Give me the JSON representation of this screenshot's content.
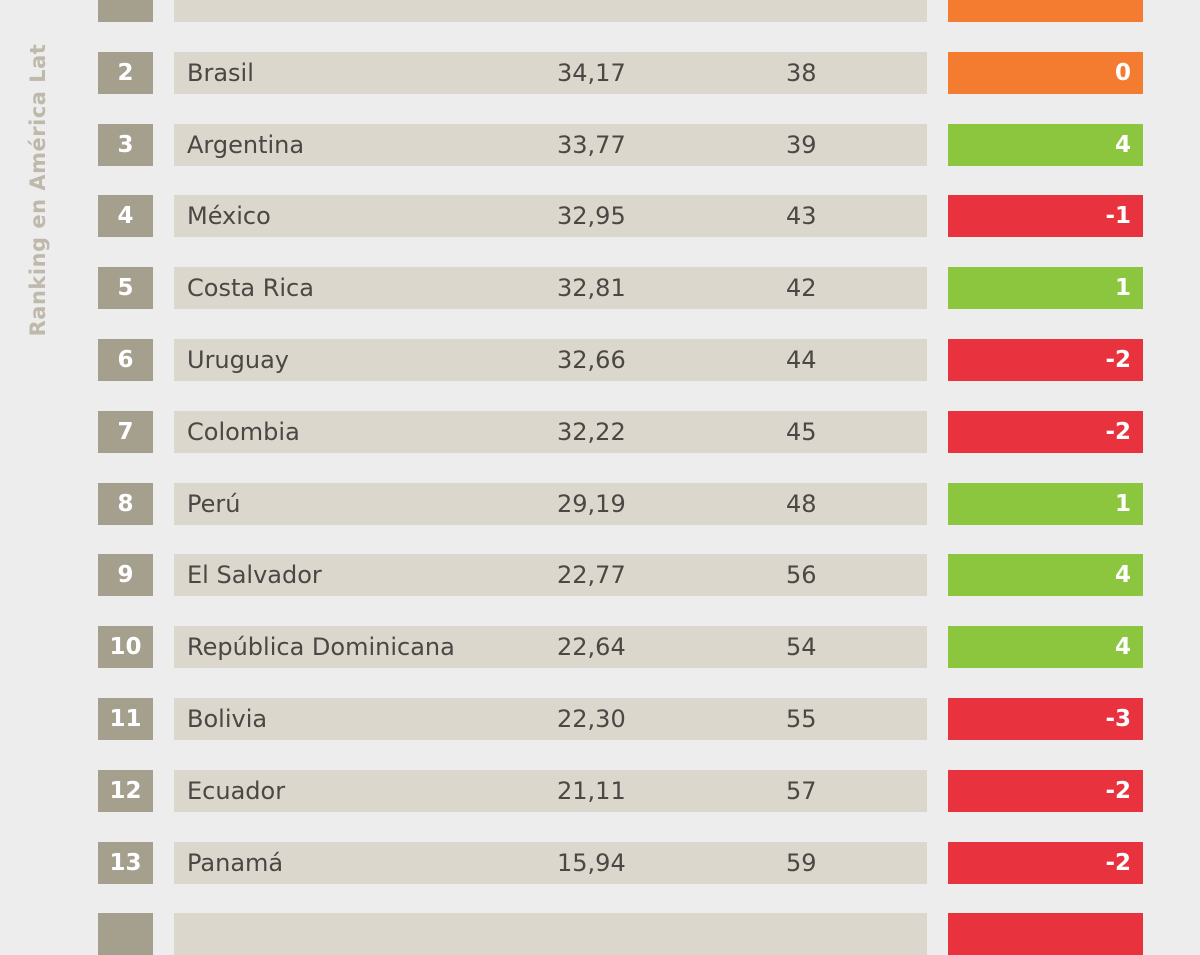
{
  "side_label": "Ranking en América Lat",
  "colors": {
    "positive": "#8cc63f",
    "zero": "#f47c30",
    "negative": "#e8323e"
  },
  "rows": [
    {
      "rank": "",
      "country": "",
      "score": "",
      "world_rank": "",
      "change": "",
      "status": "zero"
    },
    {
      "rank": "2",
      "country": "Brasil",
      "score": "34,17",
      "world_rank": "38",
      "change": "0",
      "status": "zero"
    },
    {
      "rank": "3",
      "country": "Argentina",
      "score": "33,77",
      "world_rank": "39",
      "change": "4",
      "status": "positive"
    },
    {
      "rank": "4",
      "country": "México",
      "score": "32,95",
      "world_rank": "43",
      "change": "-1",
      "status": "negative"
    },
    {
      "rank": "5",
      "country": "Costa Rica",
      "score": "32,81",
      "world_rank": "42",
      "change": "1",
      "status": "positive"
    },
    {
      "rank": "6",
      "country": "Uruguay",
      "score": "32,66",
      "world_rank": "44",
      "change": "-2",
      "status": "negative"
    },
    {
      "rank": "7",
      "country": "Colombia",
      "score": "32,22",
      "world_rank": "45",
      "change": "-2",
      "status": "negative"
    },
    {
      "rank": "8",
      "country": "Perú",
      "score": "29,19",
      "world_rank": "48",
      "change": "1",
      "status": "positive"
    },
    {
      "rank": "9",
      "country": "El Salvador",
      "score": "22,77",
      "world_rank": "56",
      "change": "4",
      "status": "positive"
    },
    {
      "rank": "10",
      "country": "República Dominicana",
      "score": "22,64",
      "world_rank": "54",
      "change": "4",
      "status": "positive"
    },
    {
      "rank": "11",
      "country": "Bolivia",
      "score": "22,30",
      "world_rank": "55",
      "change": "-3",
      "status": "negative"
    },
    {
      "rank": "12",
      "country": "Ecuador",
      "score": "21,11",
      "world_rank": "57",
      "change": "-2",
      "status": "negative"
    },
    {
      "rank": "13",
      "country": "Panamá",
      "score": "15,94",
      "world_rank": "59",
      "change": "-2",
      "status": "negative"
    },
    {
      "rank": "",
      "country": "",
      "score": "",
      "world_rank": "",
      "change": "",
      "status": "negative"
    }
  ]
}
